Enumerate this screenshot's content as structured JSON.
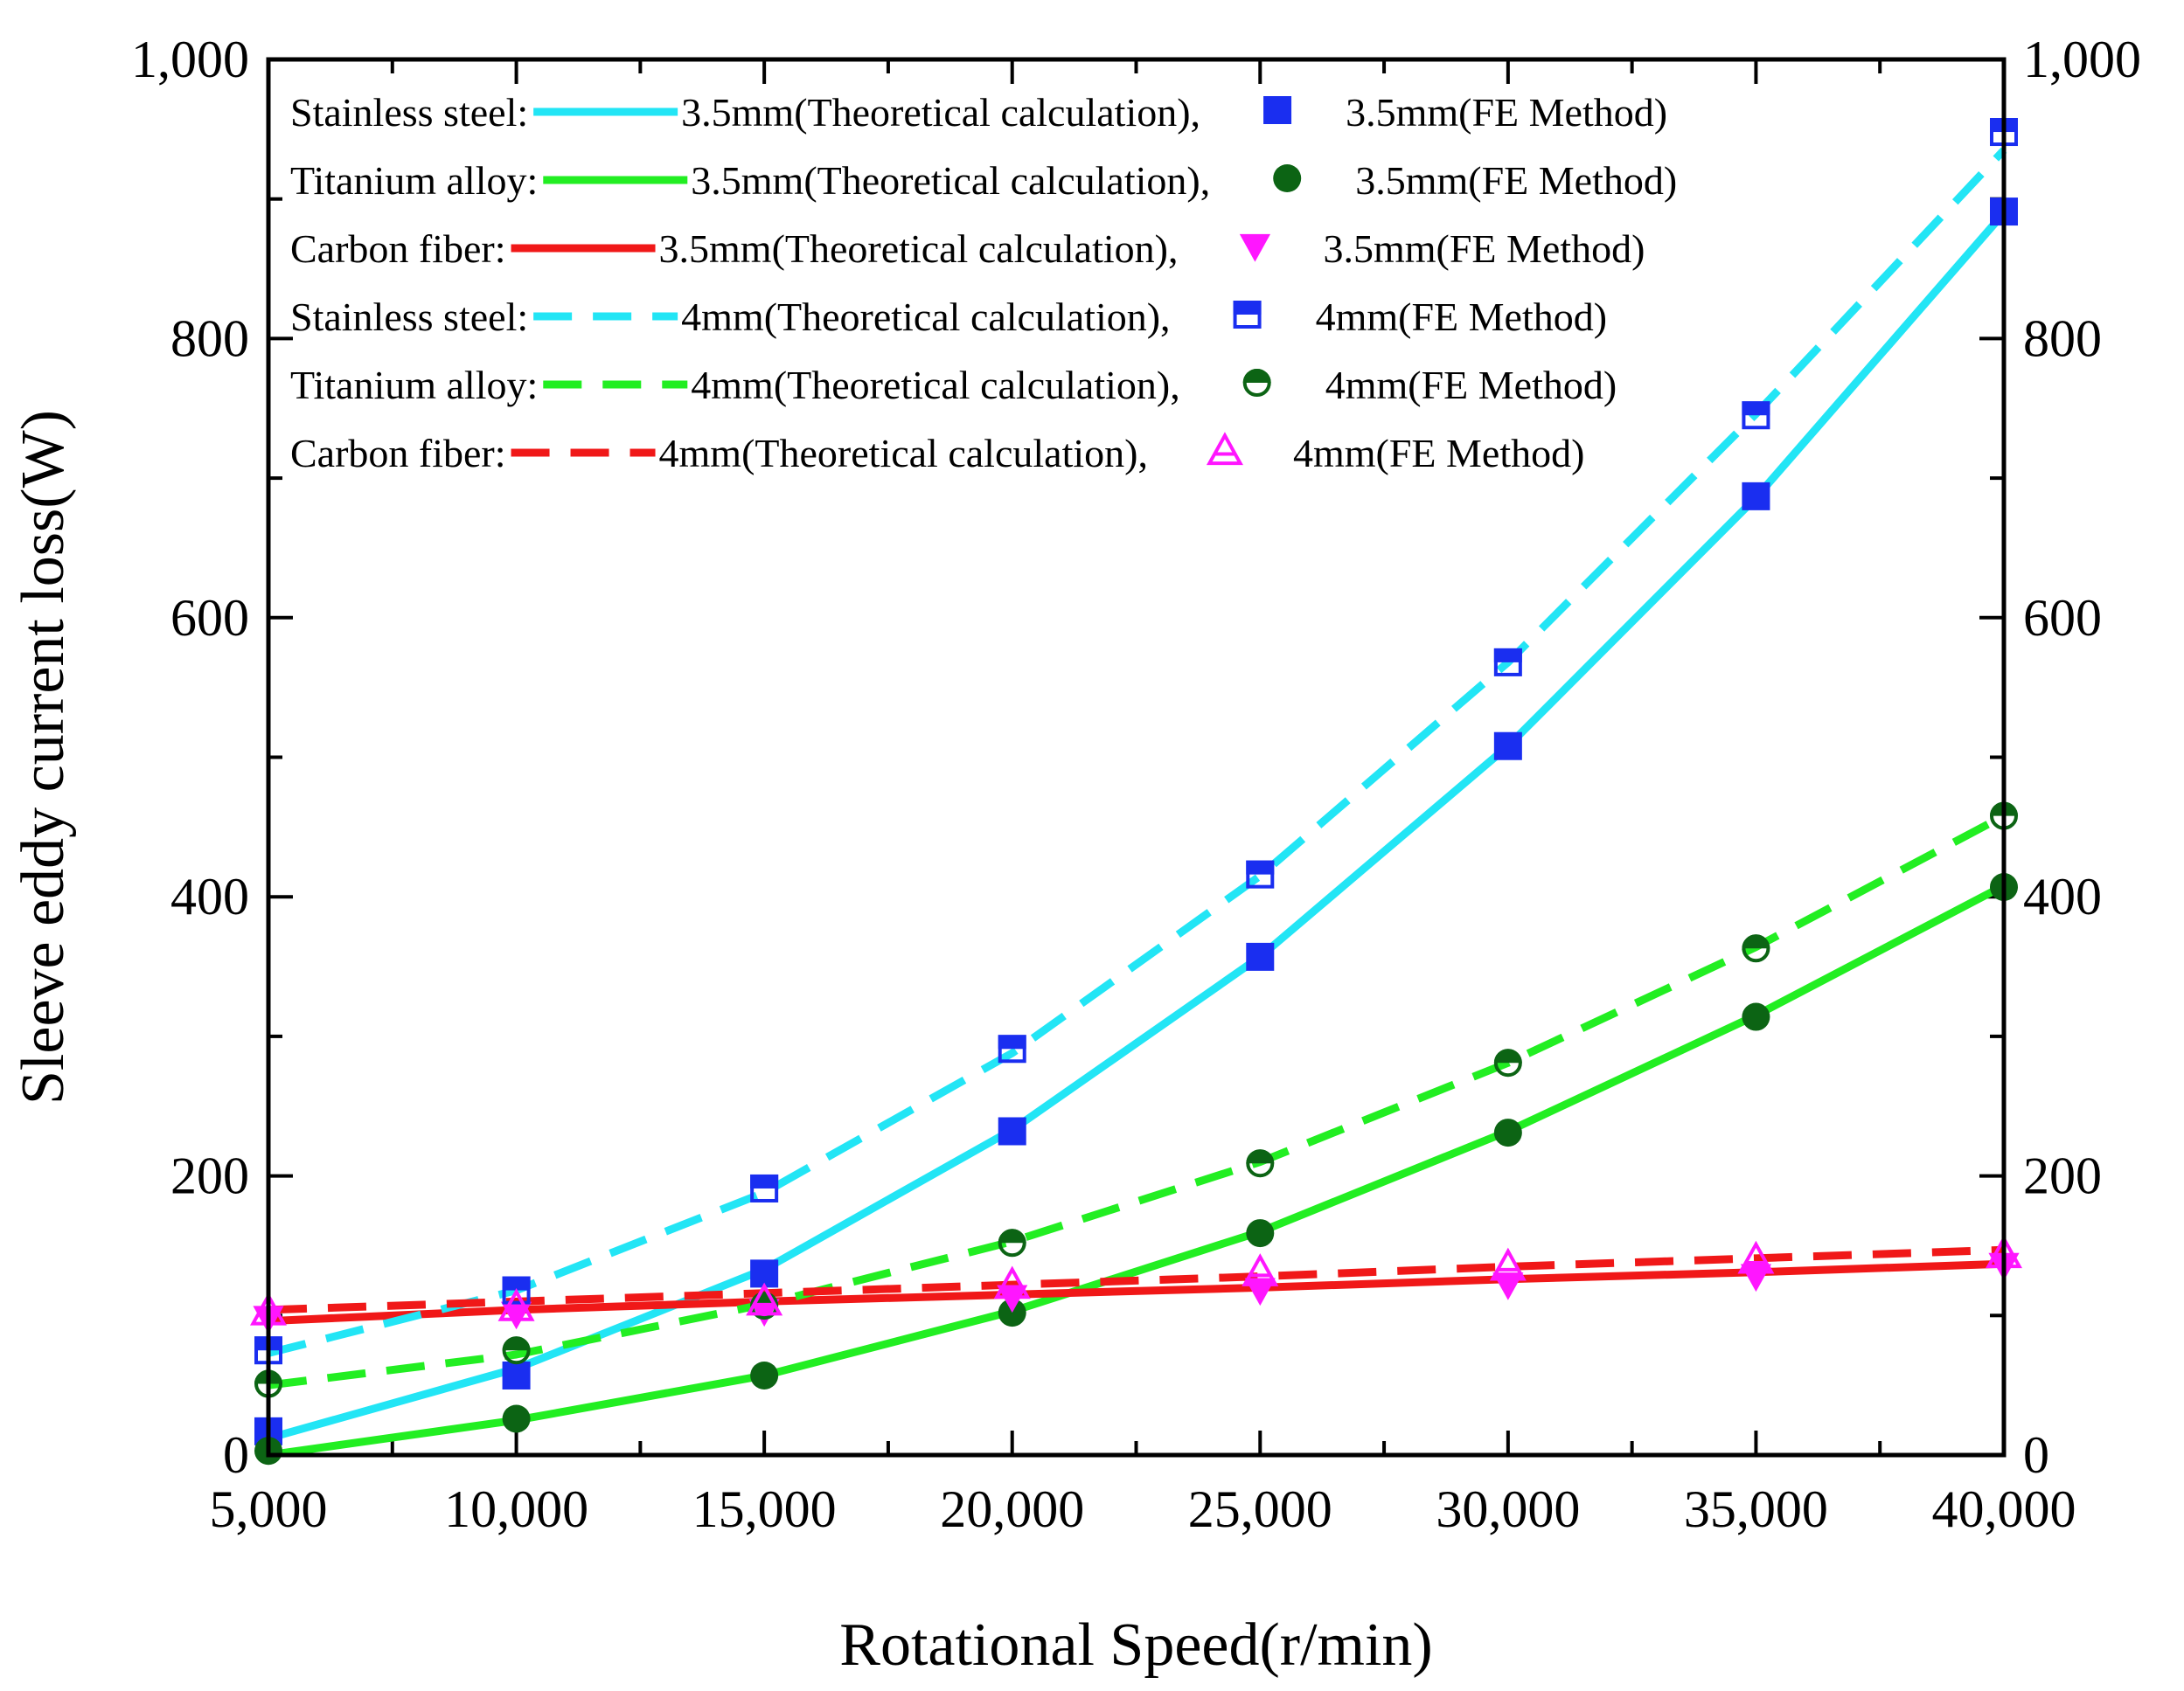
{
  "chart_data": {
    "type": "line",
    "title": "",
    "xlabel": "Rotational Speed(r/min)",
    "ylabel": "Sleeve eddy current loss(W)",
    "xlim": [
      5000,
      40000
    ],
    "ylim": [
      0,
      1000
    ],
    "x_ticks": [
      5000,
      10000,
      15000,
      20000,
      25000,
      30000,
      35000,
      40000
    ],
    "x_tick_labels": [
      "5,000",
      "10,000",
      "15,000",
      "20,000",
      "25,000",
      "30,000",
      "35,000",
      "40,000"
    ],
    "y_ticks": [
      0,
      200,
      400,
      600,
      800,
      1000
    ],
    "y_tick_labels": [
      "0",
      "200",
      "400",
      "600",
      "800",
      "1,000"
    ],
    "x": [
      5000,
      10000,
      15000,
      20000,
      25000,
      30000,
      35000,
      40000
    ],
    "legend_position": "top-left",
    "series": [
      {
        "material": "Stainless steel:",
        "line_label": "3.5mm(Theoretical calculation),",
        "marker_label": "3.5mm(FE Method)",
        "color": "#22e5f5",
        "marker_color": "#1a2ef0",
        "line_style": "solid",
        "marker": "square-filled",
        "theoretical": [
          12,
          62,
          133,
          233,
          357,
          508,
          686,
          890
        ],
        "fe": [
          17,
          57,
          130,
          232,
          357,
          508,
          687,
          891
        ]
      },
      {
        "material": "Titanium alloy:",
        "line_label": "3.5mm(Theoretical calculation),",
        "marker_label": "3.5mm(FE Method)",
        "color": "#22ee22",
        "marker_color": "#0c6414",
        "line_style": "solid",
        "marker": "circle-filled",
        "theoretical": [
          0,
          25,
          57,
          103,
          160,
          232,
          315,
          408
        ],
        "fe": [
          3,
          26,
          57,
          102,
          159,
          231,
          314,
          407
        ]
      },
      {
        "material": "Carbon fiber:",
        "line_label": "3.5mm(Theoretical calculation),",
        "marker_label": "3.5mm(FE Method)",
        "color": "#f01818",
        "marker_color": "#ff16ff",
        "line_style": "solid",
        "marker": "triangle-down-filled",
        "theoretical": [
          96,
          104,
          110,
          115,
          120,
          126,
          131,
          137
        ],
        "fe": [
          98,
          101,
          103,
          113,
          118,
          122,
          128,
          136
        ]
      },
      {
        "material": "Stainless steel:",
        "line_label": "4mm(Theoretical calculation),",
        "marker_label": "4mm(FE Method)",
        "color": "#22e5f5",
        "marker_color": "#1a2ef0",
        "line_style": "dashed",
        "marker": "square-half",
        "theoretical": [
          73,
          118,
          188,
          288,
          415,
          568,
          746,
          935
        ],
        "fe": [
          75,
          118,
          191,
          291,
          416,
          568,
          745,
          948
        ]
      },
      {
        "material": "Titanium alloy:",
        "line_label": "4mm(Theoretical calculation),",
        "marker_label": "4mm(FE Method)",
        "color": "#22ee22",
        "marker_color": "#0c6414",
        "line_style": "dashed",
        "marker": "circle-half",
        "theoretical": [
          50,
          72,
          108,
          153,
          210,
          281,
          364,
          458
        ],
        "fe": [
          51,
          75,
          107,
          152,
          209,
          281,
          363,
          458
        ]
      },
      {
        "material": "Carbon fiber:",
        "line_label": "4mm(Theoretical calculation),",
        "marker_label": "4mm(FE Method)",
        "color": "#f01818",
        "marker_color": "#ff16ff",
        "line_style": "dashed",
        "marker": "triangle-up-open",
        "theoretical": [
          104,
          110,
          116,
          122,
          128,
          135,
          141,
          147
        ],
        "fe": [
          103,
          106,
          110,
          122,
          131,
          135,
          140,
          144
        ]
      }
    ]
  }
}
